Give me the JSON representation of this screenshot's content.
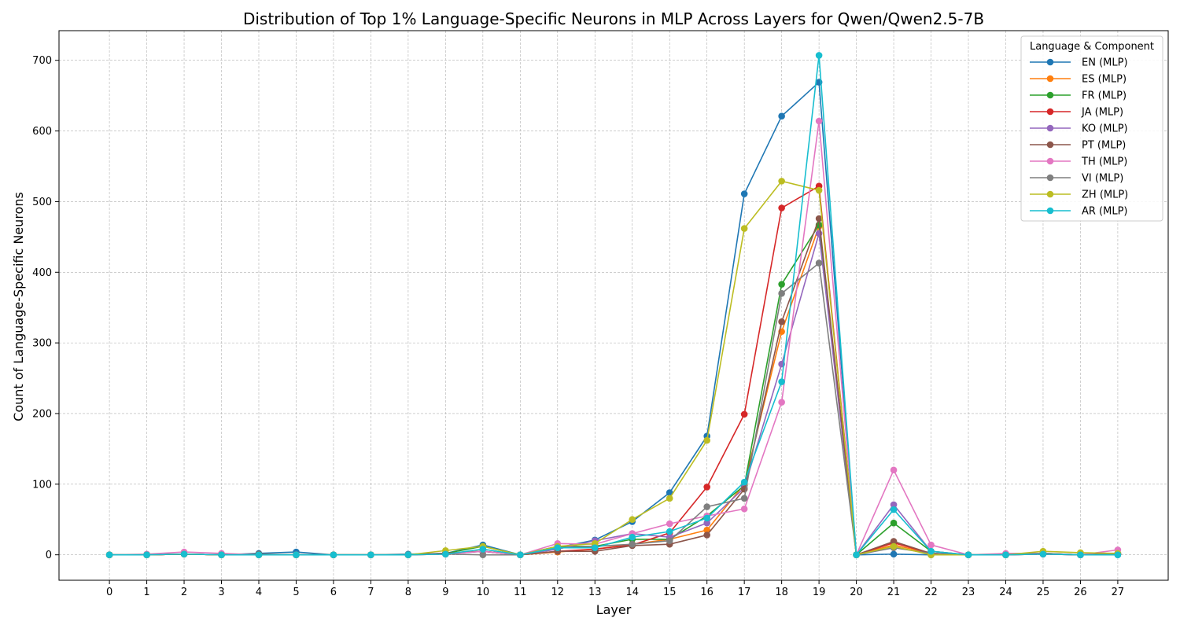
{
  "chart_data": {
    "type": "line",
    "title": "Distribution of Top 1% Language-Specific Neurons in MLP Across Layers for Qwen/Qwen2.5-7B",
    "xlabel": "Layer",
    "ylabel": "Count of Language-Specific Neurons",
    "x": [
      0,
      1,
      2,
      3,
      4,
      5,
      6,
      7,
      8,
      9,
      10,
      11,
      12,
      13,
      14,
      15,
      16,
      17,
      18,
      19,
      20,
      21,
      22,
      23,
      24,
      25,
      26,
      27
    ],
    "xlim": [
      -1.35,
      28.35
    ],
    "ylim": [
      -36,
      742
    ],
    "yticks": [
      0,
      100,
      200,
      300,
      400,
      500,
      600,
      700
    ],
    "grid": true,
    "legend_title": "Language & Component",
    "legend_position": "top-right",
    "series": [
      {
        "name": "EN (MLP)",
        "color": "#1f77b4",
        "values": [
          0,
          0,
          1,
          0,
          2,
          4,
          0,
          0,
          1,
          2,
          14,
          0,
          10,
          21,
          47,
          88,
          168,
          511,
          621,
          669,
          0,
          1,
          0,
          0,
          0,
          1,
          0,
          0
        ]
      },
      {
        "name": "ES (MLP)",
        "color": "#ff7f0e",
        "values": [
          0,
          0,
          1,
          0,
          0,
          0,
          0,
          0,
          0,
          2,
          5,
          0,
          4,
          8,
          15,
          22,
          35,
          100,
          316,
          465,
          0,
          14,
          2,
          0,
          0,
          2,
          0,
          1
        ]
      },
      {
        "name": "FR (MLP)",
        "color": "#2ca02c",
        "values": [
          0,
          0,
          1,
          0,
          0,
          0,
          0,
          0,
          0,
          2,
          12,
          0,
          12,
          12,
          22,
          22,
          55,
          98,
          383,
          467,
          0,
          45,
          5,
          0,
          0,
          2,
          0,
          1
        ]
      },
      {
        "name": "JA (MLP)",
        "color": "#d62728",
        "values": [
          0,
          0,
          1,
          0,
          0,
          0,
          0,
          0,
          0,
          2,
          5,
          0,
          5,
          8,
          14,
          31,
          96,
          199,
          491,
          522,
          0,
          17,
          2,
          0,
          0,
          1,
          0,
          1
        ]
      },
      {
        "name": "KO (MLP)",
        "color": "#9467bd",
        "values": [
          0,
          0,
          1,
          0,
          0,
          0,
          0,
          0,
          0,
          1,
          5,
          0,
          8,
          20,
          30,
          25,
          45,
          95,
          270,
          455,
          0,
          71,
          5,
          0,
          0,
          1,
          0,
          2
        ]
      },
      {
        "name": "PT (MLP)",
        "color": "#8c564b",
        "values": [
          0,
          0,
          1,
          0,
          1,
          0,
          0,
          0,
          0,
          2,
          5,
          0,
          5,
          5,
          13,
          15,
          28,
          93,
          330,
          476,
          0,
          19,
          2,
          0,
          0,
          2,
          0,
          2
        ]
      },
      {
        "name": "TH (MLP)",
        "color": "#e377c2",
        "values": [
          0,
          1,
          4,
          2,
          0,
          0,
          0,
          0,
          0,
          1,
          5,
          0,
          16,
          15,
          30,
          44,
          55,
          65,
          216,
          614,
          0,
          120,
          14,
          0,
          2,
          2,
          0,
          7
        ]
      },
      {
        "name": "VI (MLP)",
        "color": "#7f7f7f",
        "values": [
          0,
          0,
          1,
          0,
          0,
          0,
          0,
          0,
          0,
          1,
          0,
          0,
          10,
          12,
          15,
          20,
          68,
          80,
          370,
          413,
          0,
          10,
          2,
          0,
          0,
          2,
          0,
          1
        ]
      },
      {
        "name": "ZH (MLP)",
        "color": "#bcbd22",
        "values": [
          0,
          0,
          1,
          0,
          0,
          0,
          0,
          0,
          0,
          6,
          12,
          0,
          12,
          16,
          50,
          80,
          162,
          462,
          529,
          516,
          0,
          12,
          0,
          0,
          0,
          5,
          3,
          2
        ]
      },
      {
        "name": "AR (MLP)",
        "color": "#17becf",
        "values": [
          0,
          0,
          1,
          0,
          0,
          0,
          0,
          0,
          0,
          1,
          8,
          0,
          10,
          10,
          25,
          33,
          52,
          103,
          245,
          707,
          0,
          64,
          5,
          0,
          0,
          1,
          0,
          0
        ]
      }
    ]
  }
}
